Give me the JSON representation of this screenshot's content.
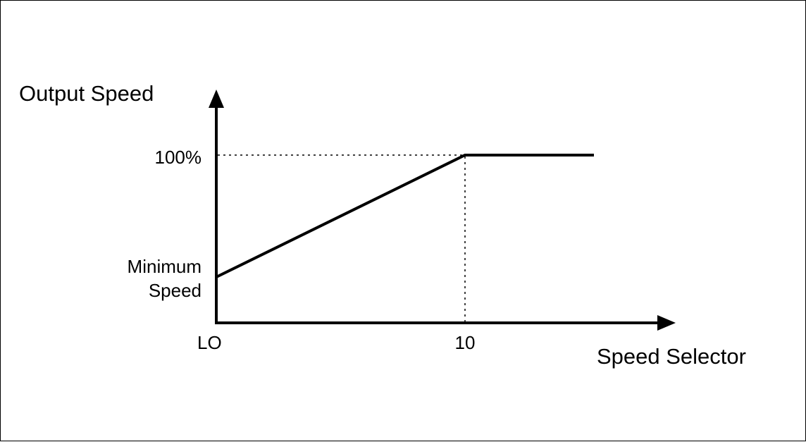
{
  "diagram": {
    "y_axis_title": "Output Speed",
    "x_axis_title": "Speed Selector",
    "y_tick_top": "100%",
    "y_tick_bottom_line1": "Minimum",
    "y_tick_bottom_line2": "Speed",
    "x_tick_start": "LO",
    "x_tick_end": "10"
  },
  "colors": {
    "line": "#000000",
    "background": "#ffffff"
  }
}
